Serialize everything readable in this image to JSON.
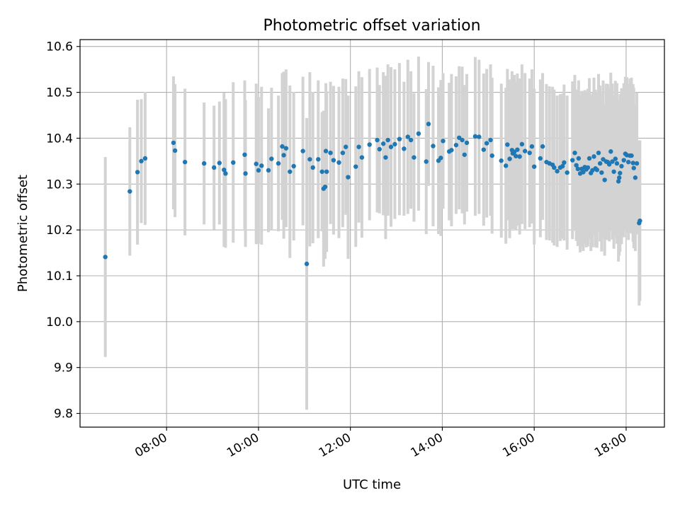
{
  "chart_data": {
    "type": "scatter",
    "title": "Photometric offset variation",
    "xlabel": "UTC time",
    "ylabel": "Photometric offset",
    "x_ticks": [
      "08:00",
      "10:00",
      "12:00",
      "14:00",
      "16:00",
      "18:00"
    ],
    "y_ticks": [
      "9.8",
      "9.9",
      "10.0",
      "10.1",
      "10.2",
      "10.3",
      "10.4",
      "10.5",
      "10.6"
    ],
    "xlim": [
      "06:07",
      "18:50"
    ],
    "ylim": [
      9.77,
      10.615
    ],
    "grid": true,
    "legend": "none",
    "colors": {
      "points": "#1f77b4",
      "errorbars": "#d3d3d3",
      "grid": "#b0b0b0"
    },
    "x": [
      "06:40",
      "07:12",
      "07:22",
      "07:27",
      "07:32",
      "08:09",
      "08:11",
      "08:24",
      "08:49",
      "09:02",
      "09:09",
      "09:15",
      "09:17",
      "09:27",
      "09:42",
      "09:43",
      "09:57",
      "10:00",
      "10:04",
      "10:13",
      "10:17",
      "10:26",
      "10:31",
      "10:33",
      "10:36",
      "10:41",
      "10:46",
      "10:58",
      "11:03",
      "11:07",
      "11:11",
      "11:18",
      "11:23",
      "11:25",
      "11:27",
      "11:28",
      "11:29",
      "11:34",
      "11:38",
      "11:45",
      "11:50",
      "11:54",
      "11:57",
      "12:07",
      "12:11",
      "12:15",
      "12:25",
      "12:35",
      "12:38",
      "12:43",
      "12:46",
      "12:49",
      "12:53",
      "12:58",
      "13:04",
      "13:10",
      "13:15",
      "13:19",
      "13:23",
      "13:29",
      "13:39",
      "13:42",
      "13:48",
      "13:55",
      "13:58",
      "14:01",
      "14:09",
      "14:12",
      "14:18",
      "14:22",
      "14:26",
      "14:29",
      "14:32",
      "14:43",
      "14:48",
      "14:54",
      "14:58",
      "15:03",
      "15:05",
      "15:17",
      "15:23",
      "15:25",
      "15:28",
      "15:31",
      "15:32",
      "15:34",
      "15:36",
      "15:38",
      "15:41",
      "15:44",
      "15:48",
      "15:54",
      "15:57",
      "16:00",
      "16:08",
      "16:11",
      "16:16",
      "16:20",
      "16:24",
      "16:26",
      "16:30",
      "16:34",
      "16:37",
      "16:39",
      "16:43",
      "16:50",
      "16:53",
      "16:55",
      "16:57",
      "16:58",
      "17:00",
      "17:02",
      "17:04",
      "17:06",
      "17:08",
      "17:10",
      "17:12",
      "17:14",
      "17:16",
      "17:18",
      "17:20",
      "17:22",
      "17:24",
      "17:26",
      "17:28",
      "17:30",
      "17:32",
      "17:34",
      "17:36",
      "17:38",
      "17:40",
      "17:42",
      "17:44",
      "17:46",
      "17:48",
      "17:50",
      "17:51",
      "17:52",
      "17:54",
      "17:57",
      "17:59",
      "18:01",
      "18:03",
      "18:05",
      "18:07",
      "18:09",
      "18:10",
      "18:12",
      "18:14",
      "18:17",
      "18:18"
    ],
    "y": [
      10.141,
      10.284,
      10.326,
      10.35,
      10.356,
      10.39,
      10.373,
      10.348,
      10.345,
      10.336,
      10.346,
      10.331,
      10.323,
      10.347,
      10.364,
      10.323,
      10.344,
      10.33,
      10.34,
      10.33,
      10.355,
      10.345,
      10.382,
      10.363,
      10.378,
      10.327,
      10.339,
      10.372,
      10.126,
      10.354,
      10.336,
      10.354,
      10.327,
      10.29,
      10.294,
      10.372,
      10.327,
      10.368,
      10.352,
      10.347,
      10.368,
      10.381,
      10.315,
      10.338,
      10.381,
      10.358,
      10.386,
      10.396,
      10.376,
      10.388,
      10.358,
      10.396,
      10.381,
      10.387,
      10.398,
      10.377,
      10.403,
      10.396,
      10.358,
      10.41,
      10.349,
      10.431,
      10.383,
      10.351,
      10.357,
      10.394,
      10.371,
      10.374,
      10.385,
      10.401,
      10.396,
      10.364,
      10.39,
      10.404,
      10.403,
      10.375,
      10.389,
      10.396,
      10.362,
      10.351,
      10.34,
      10.386,
      10.355,
      10.374,
      10.367,
      10.37,
      10.361,
      10.375,
      10.36,
      10.387,
      10.372,
      10.368,
      10.382,
      10.338,
      10.356,
      10.382,
      10.348,
      10.345,
      10.342,
      10.336,
      10.328,
      10.336,
      10.339,
      10.347,
      10.325,
      10.352,
      10.368,
      10.341,
      10.333,
      10.356,
      10.323,
      10.333,
      10.326,
      10.337,
      10.332,
      10.336,
      10.356,
      10.324,
      10.33,
      10.36,
      10.334,
      10.331,
      10.368,
      10.345,
      10.325,
      10.354,
      10.309,
      10.349,
      10.348,
      10.343,
      10.371,
      10.349,
      10.327,
      10.355,
      10.345,
      10.306,
      10.314,
      10.324,
      10.339,
      10.352,
      10.366,
      10.363,
      10.348,
      10.362,
      10.362,
      10.346,
      10.335,
      10.314,
      10.345,
      10.215,
      10.22
    ],
    "yerr": [
      0.218,
      0.14,
      0.158,
      0.135,
      0.145,
      0.145,
      0.145,
      0.16,
      0.133,
      0.135,
      0.134,
      0.168,
      0.162,
      0.175,
      0.162,
      0.16,
      0.175,
      0.16,
      0.172,
      0.135,
      0.155,
      0.148,
      0.16,
      0.182,
      0.172,
      0.188,
      0.162,
      0.162,
      0.318,
      0.19,
      0.165,
      0.172,
      0.13,
      0.17,
      0.157,
      0.148,
      0.175,
      0.155,
      0.162,
      0.165,
      0.162,
      0.148,
      0.178,
      0.175,
      0.165,
      0.175,
      0.165,
      0.158,
      0.14,
      0.156,
      0.178,
      0.165,
      0.174,
      0.163,
      0.166,
      0.146,
      0.168,
      0.15,
      0.14,
      0.168,
      0.158,
      0.135,
      0.175,
      0.16,
      0.17,
      0.148,
      0.15,
      0.166,
      0.15,
      0.156,
      0.16,
      0.152,
      0.15,
      0.173,
      0.168,
      0.166,
      0.162,
      0.165,
      0.17,
      0.168,
      0.17,
      0.165,
      0.173,
      0.172,
      0.162,
      0.168,
      0.162,
      0.166,
      0.17,
      0.174,
      0.17,
      0.162,
      0.168,
      0.17,
      0.172,
      0.16,
      0.17,
      0.168,
      0.17,
      0.17,
      0.165,
      0.16,
      0.158,
      0.17,
      0.168,
      0.172,
      0.17,
      0.165,
      0.168,
      0.17,
      0.172,
      0.17,
      0.172,
      0.168,
      0.17,
      0.172,
      0.175,
      0.17,
      0.168,
      0.172,
      0.172,
      0.17,
      0.172,
      0.17,
      0.172,
      0.172,
      0.165,
      0.17,
      0.17,
      0.168,
      0.172,
      0.17,
      0.168,
      0.17,
      0.175,
      0.175,
      0.17,
      0.172,
      0.17,
      0.168,
      0.168,
      0.17,
      0.17,
      0.168,
      0.17,
      0.172,
      0.175,
      0.16,
      0.155,
      0.18,
      0.175
    ]
  }
}
